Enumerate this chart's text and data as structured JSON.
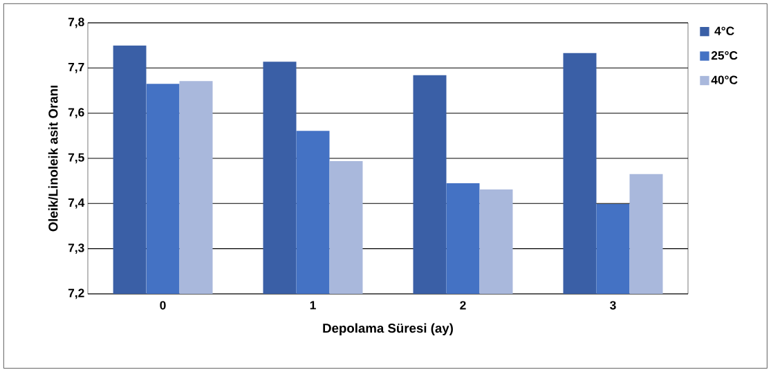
{
  "chart_data": {
    "type": "bar",
    "xlabel": "Depolama Süresi (ay)",
    "ylabel": "Oleik/Linoleik asit Oranı",
    "categories": [
      "0",
      "1",
      "2",
      "3"
    ],
    "series": [
      {
        "name": "4°C",
        "color": "#3a5fa6",
        "values": [
          7.75,
          7.714,
          7.684,
          7.733
        ]
      },
      {
        "name": "25°C",
        "color": "#4472c4",
        "values": [
          7.665,
          7.561,
          7.445,
          7.399
        ]
      },
      {
        "name": "40°C",
        "color": "#a9b8dc",
        "values": [
          7.671,
          7.494,
          7.431,
          7.465
        ]
      }
    ],
    "ylim": [
      7.2,
      7.8
    ],
    "yticks": [
      {
        "value": 7.2,
        "label": "7,2"
      },
      {
        "value": 7.3,
        "label": "7,3"
      },
      {
        "value": 7.4,
        "label": "7,4"
      },
      {
        "value": 7.5,
        "label": "7,5"
      },
      {
        "value": 7.6,
        "label": "7,6"
      },
      {
        "value": 7.7,
        "label": "7,7"
      },
      {
        "value": 7.8,
        "label": "7,8"
      }
    ],
    "grid": "y",
    "legend": "right"
  }
}
